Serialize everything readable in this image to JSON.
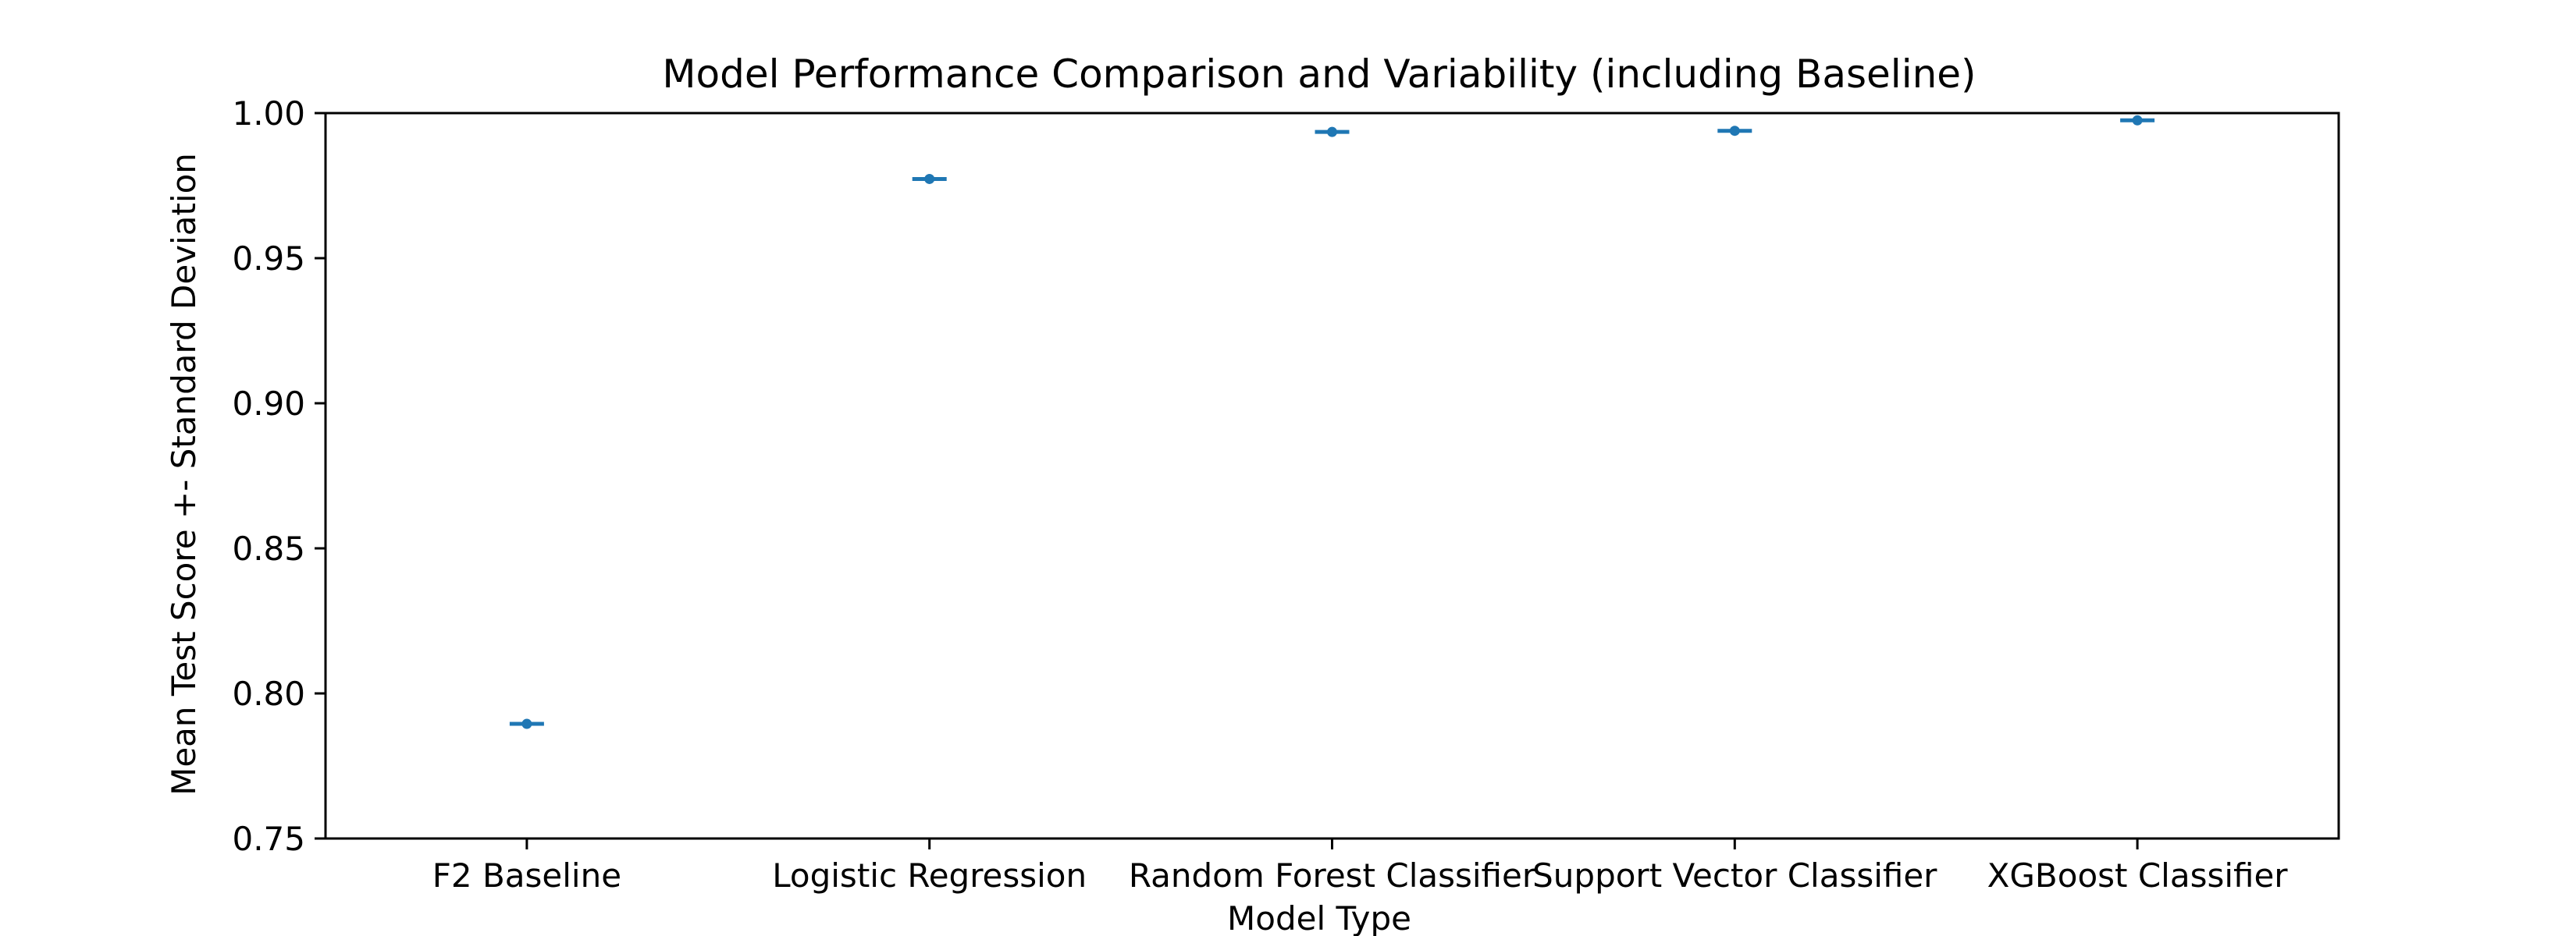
{
  "chart_data": {
    "type": "scatter",
    "title": "Model Performance Comparison and Variability (including Baseline)",
    "xlabel": "Model Type",
    "ylabel": "Mean Test Score +- Standard Deviation",
    "categories": [
      "F2 Baseline",
      "Logistic Regression",
      "Random Forest Classifier",
      "Support Vector Classifier",
      "XGBoost Classifier"
    ],
    "series": [
      {
        "name": "Mean Test Score",
        "values": [
          0.7895,
          0.9773,
          0.9935,
          0.9939,
          0.9975
        ],
        "errors": [
          0.0005,
          0.0005,
          0.0006,
          0.0005,
          0.0004
        ]
      }
    ],
    "ylim": [
      0.75,
      1.0
    ],
    "yticks": [
      0.75,
      0.8,
      0.85,
      0.9,
      0.95,
      1.0
    ],
    "ytick_labels": [
      "0.75",
      "0.80",
      "0.85",
      "0.90",
      "0.95",
      "1.00"
    ],
    "grid": false,
    "legend": "none",
    "colors": {
      "series": "#1f77b4",
      "axis": "#000000"
    }
  }
}
